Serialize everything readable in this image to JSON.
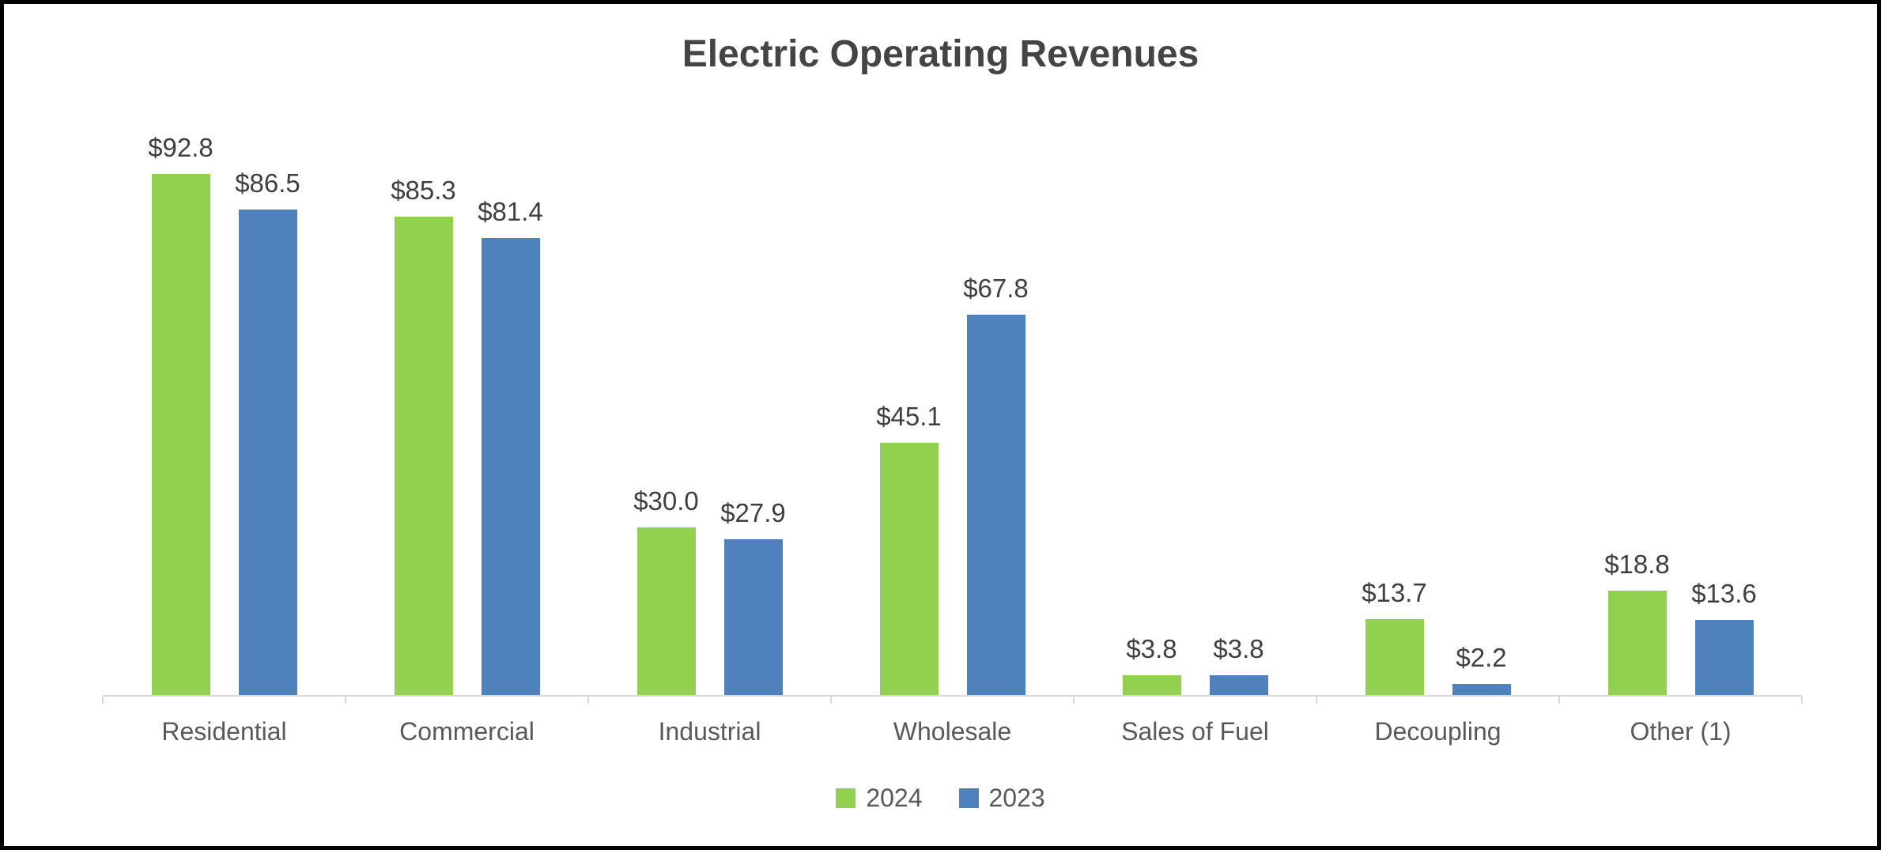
{
  "chart_data": {
    "type": "bar",
    "title": "Electric Operating Revenues",
    "categories": [
      "Residential",
      "Commercial",
      "Industrial",
      "Wholesale",
      "Sales of Fuel",
      "Decoupling",
      "Other (1)"
    ],
    "series": [
      {
        "name": "2024",
        "color": "#92D050",
        "values": [
          92.8,
          85.3,
          30.0,
          45.1,
          3.8,
          13.7,
          18.8
        ],
        "data_labels": [
          "$92.8",
          "$85.3",
          "$30.0",
          "$45.1",
          "$3.8",
          "$13.7",
          "$18.8"
        ]
      },
      {
        "name": "2023",
        "color": "#4F81BD",
        "values": [
          86.5,
          81.4,
          27.9,
          67.8,
          3.8,
          2.2,
          13.6
        ],
        "data_labels": [
          "$86.5",
          "$81.4",
          "$27.9",
          "$67.8",
          "$3.8",
          "$2.2",
          "$13.6"
        ]
      }
    ],
    "xlabel": "",
    "ylabel": "",
    "ylim": [
      0,
      100
    ],
    "grid": false,
    "data_labels_visible": true,
    "legend_position": "bottom"
  },
  "styles": {
    "title_color": "#444444",
    "data_label_color": "#3F3F3F",
    "category_label_color": "#595959",
    "legend_text_color": "#595959",
    "axis_color": "#D9D9D9",
    "frame_color": "#000000",
    "background": "#FFFFFF"
  }
}
